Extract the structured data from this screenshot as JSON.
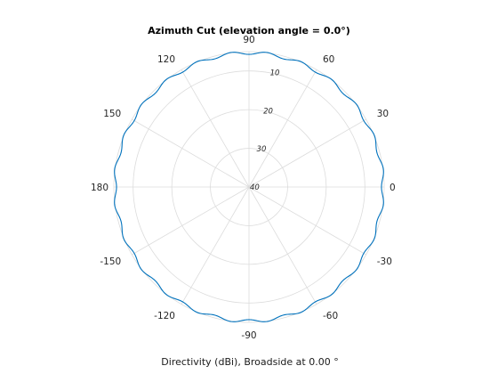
{
  "chart_data": {
    "type": "polar-line",
    "title": "Azimuth Cut (elevation angle = 0.0°)",
    "xlabel": "Directivity (dBi), Broadside at 0.00 °",
    "angle_ticks": [
      "0",
      "30",
      "60",
      "90",
      "120",
      "150",
      "180",
      "-150",
      "-120",
      "-90",
      "-60",
      "-30"
    ],
    "angle_tick_values_deg": [
      0,
      30,
      60,
      90,
      120,
      150,
      180,
      210,
      240,
      270,
      300,
      330
    ],
    "radial_ticks": [
      "10",
      "20",
      "30",
      "40"
    ],
    "radial_tick_label_angle_deg": 80,
    "radial_axis": {
      "outer_value": 5,
      "center_value": 40,
      "grid_values": [
        10,
        20,
        30,
        40
      ],
      "direction": "decreasing-outward"
    },
    "grid": true,
    "series": [
      {
        "color": "#0072bd",
        "baseline": 5.3,
        "ripple_amplitude": 0.4,
        "ripples_per_turn": 24,
        "samples": 720
      }
    ]
  }
}
